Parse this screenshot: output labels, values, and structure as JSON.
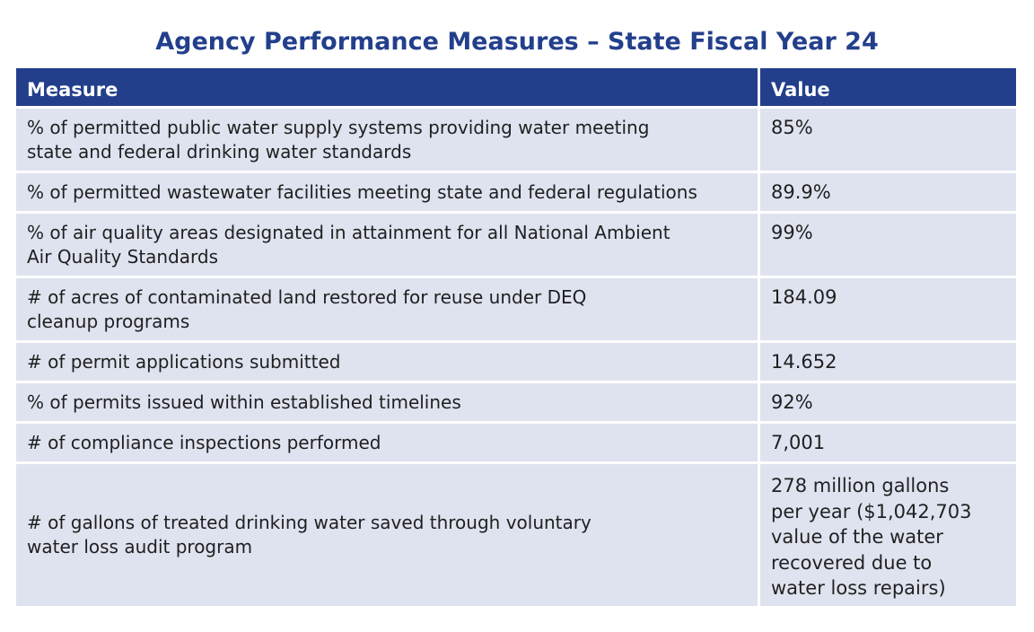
{
  "title": "Agency Performance Measures – State Fiscal Year 24",
  "table": {
    "headers": {
      "measure": "Measure",
      "value": "Value"
    },
    "rows": [
      {
        "measure": "% of permitted public water supply systems providing water meeting state and federal drinking water standards",
        "value": "85%"
      },
      {
        "measure": "% of permitted wastewater facilities meeting state and federal regulations",
        "value": "89.9%"
      },
      {
        "measure": "% of air quality areas designated in attainment for all National Ambient Air Quality Standards",
        "value": "99%"
      },
      {
        "measure": "# of acres of contaminated land restored for reuse under DEQ cleanup programs",
        "value": "184.09"
      },
      {
        "measure": "# of permit applications submitted",
        "value": "14.652"
      },
      {
        "measure": "% of permits issued within established timelines",
        "value": "92%"
      },
      {
        "measure": "# of compliance inspections performed",
        "value": "7,001"
      },
      {
        "measure": "# of gallons of treated drinking water saved through voluntary water loss audit program",
        "value": "278 million gallons per year ($1,042,703 value of the water recovered due to water loss repairs)"
      }
    ]
  },
  "colors": {
    "header_bg": "#233f8c",
    "title": "#233f8c",
    "row_bg": "#dfe3f0"
  }
}
